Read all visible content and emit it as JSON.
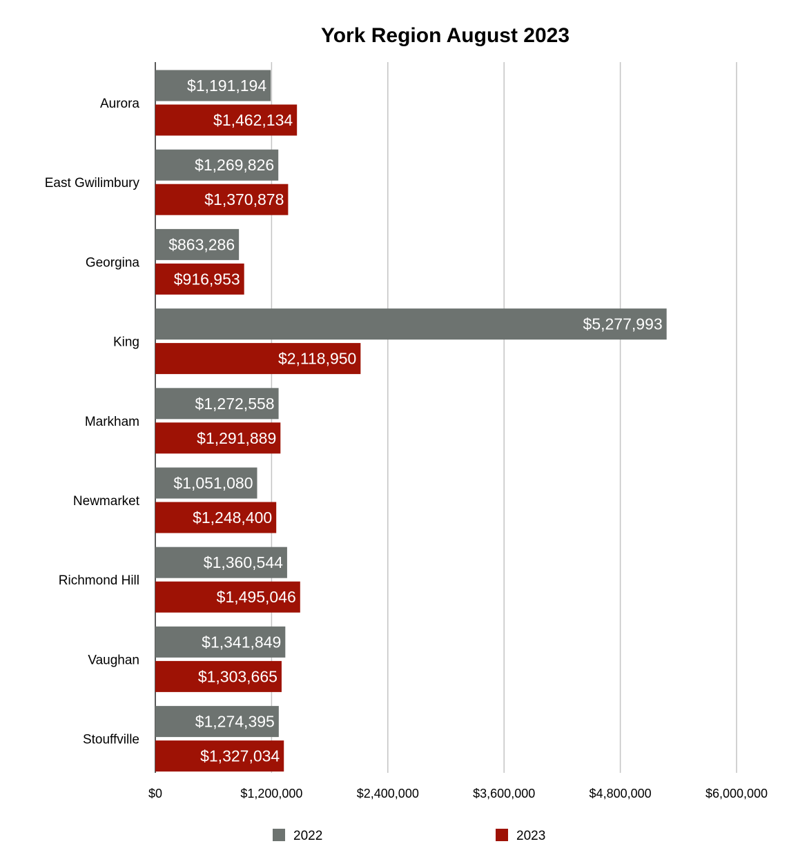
{
  "chart_data": {
    "type": "bar",
    "orientation": "horizontal",
    "title": "York Region August 2023",
    "xlabel": "",
    "ylabel": "",
    "categories": [
      "Aurora",
      "East Gwilimbury",
      "Georgina",
      "King",
      "Markham",
      "Newmarket",
      "Richmond Hill",
      "Vaughan",
      "Stouffville"
    ],
    "series": [
      {
        "name": "2022",
        "color": "#6d7370",
        "values": [
          1191194,
          1269826,
          863286,
          5277993,
          1272558,
          1051080,
          1360544,
          1341849,
          1274395
        ],
        "labels": [
          "$1,191,194",
          "$1,269,826",
          "$863,286",
          "$5,277,993",
          "$1,272,558",
          "$1,051,080",
          "$1,360,544",
          "$1,341,849",
          "$1,274,395"
        ]
      },
      {
        "name": "2023",
        "color": "#9e1205",
        "values": [
          1462134,
          1370878,
          916953,
          2118950,
          1291889,
          1248400,
          1495046,
          1303665,
          1327034
        ],
        "labels": [
          "$1,462,134",
          "$1,370,878",
          "$916,953",
          "$2,118,950",
          "$1,291,889",
          "$1,248,400",
          "$1,495,046",
          "$1,303,665",
          "$1,327,034"
        ]
      }
    ],
    "xlim": [
      0,
      6000000
    ],
    "ticks": [
      0,
      1200000,
      2400000,
      3600000,
      4800000,
      6000000
    ],
    "tick_labels": [
      "$0",
      "$1,200,000",
      "$2,400,000",
      "$3,600,000",
      "$4,800,000",
      "$6,000,000"
    ],
    "grid": true,
    "legend_position": "bottom"
  }
}
